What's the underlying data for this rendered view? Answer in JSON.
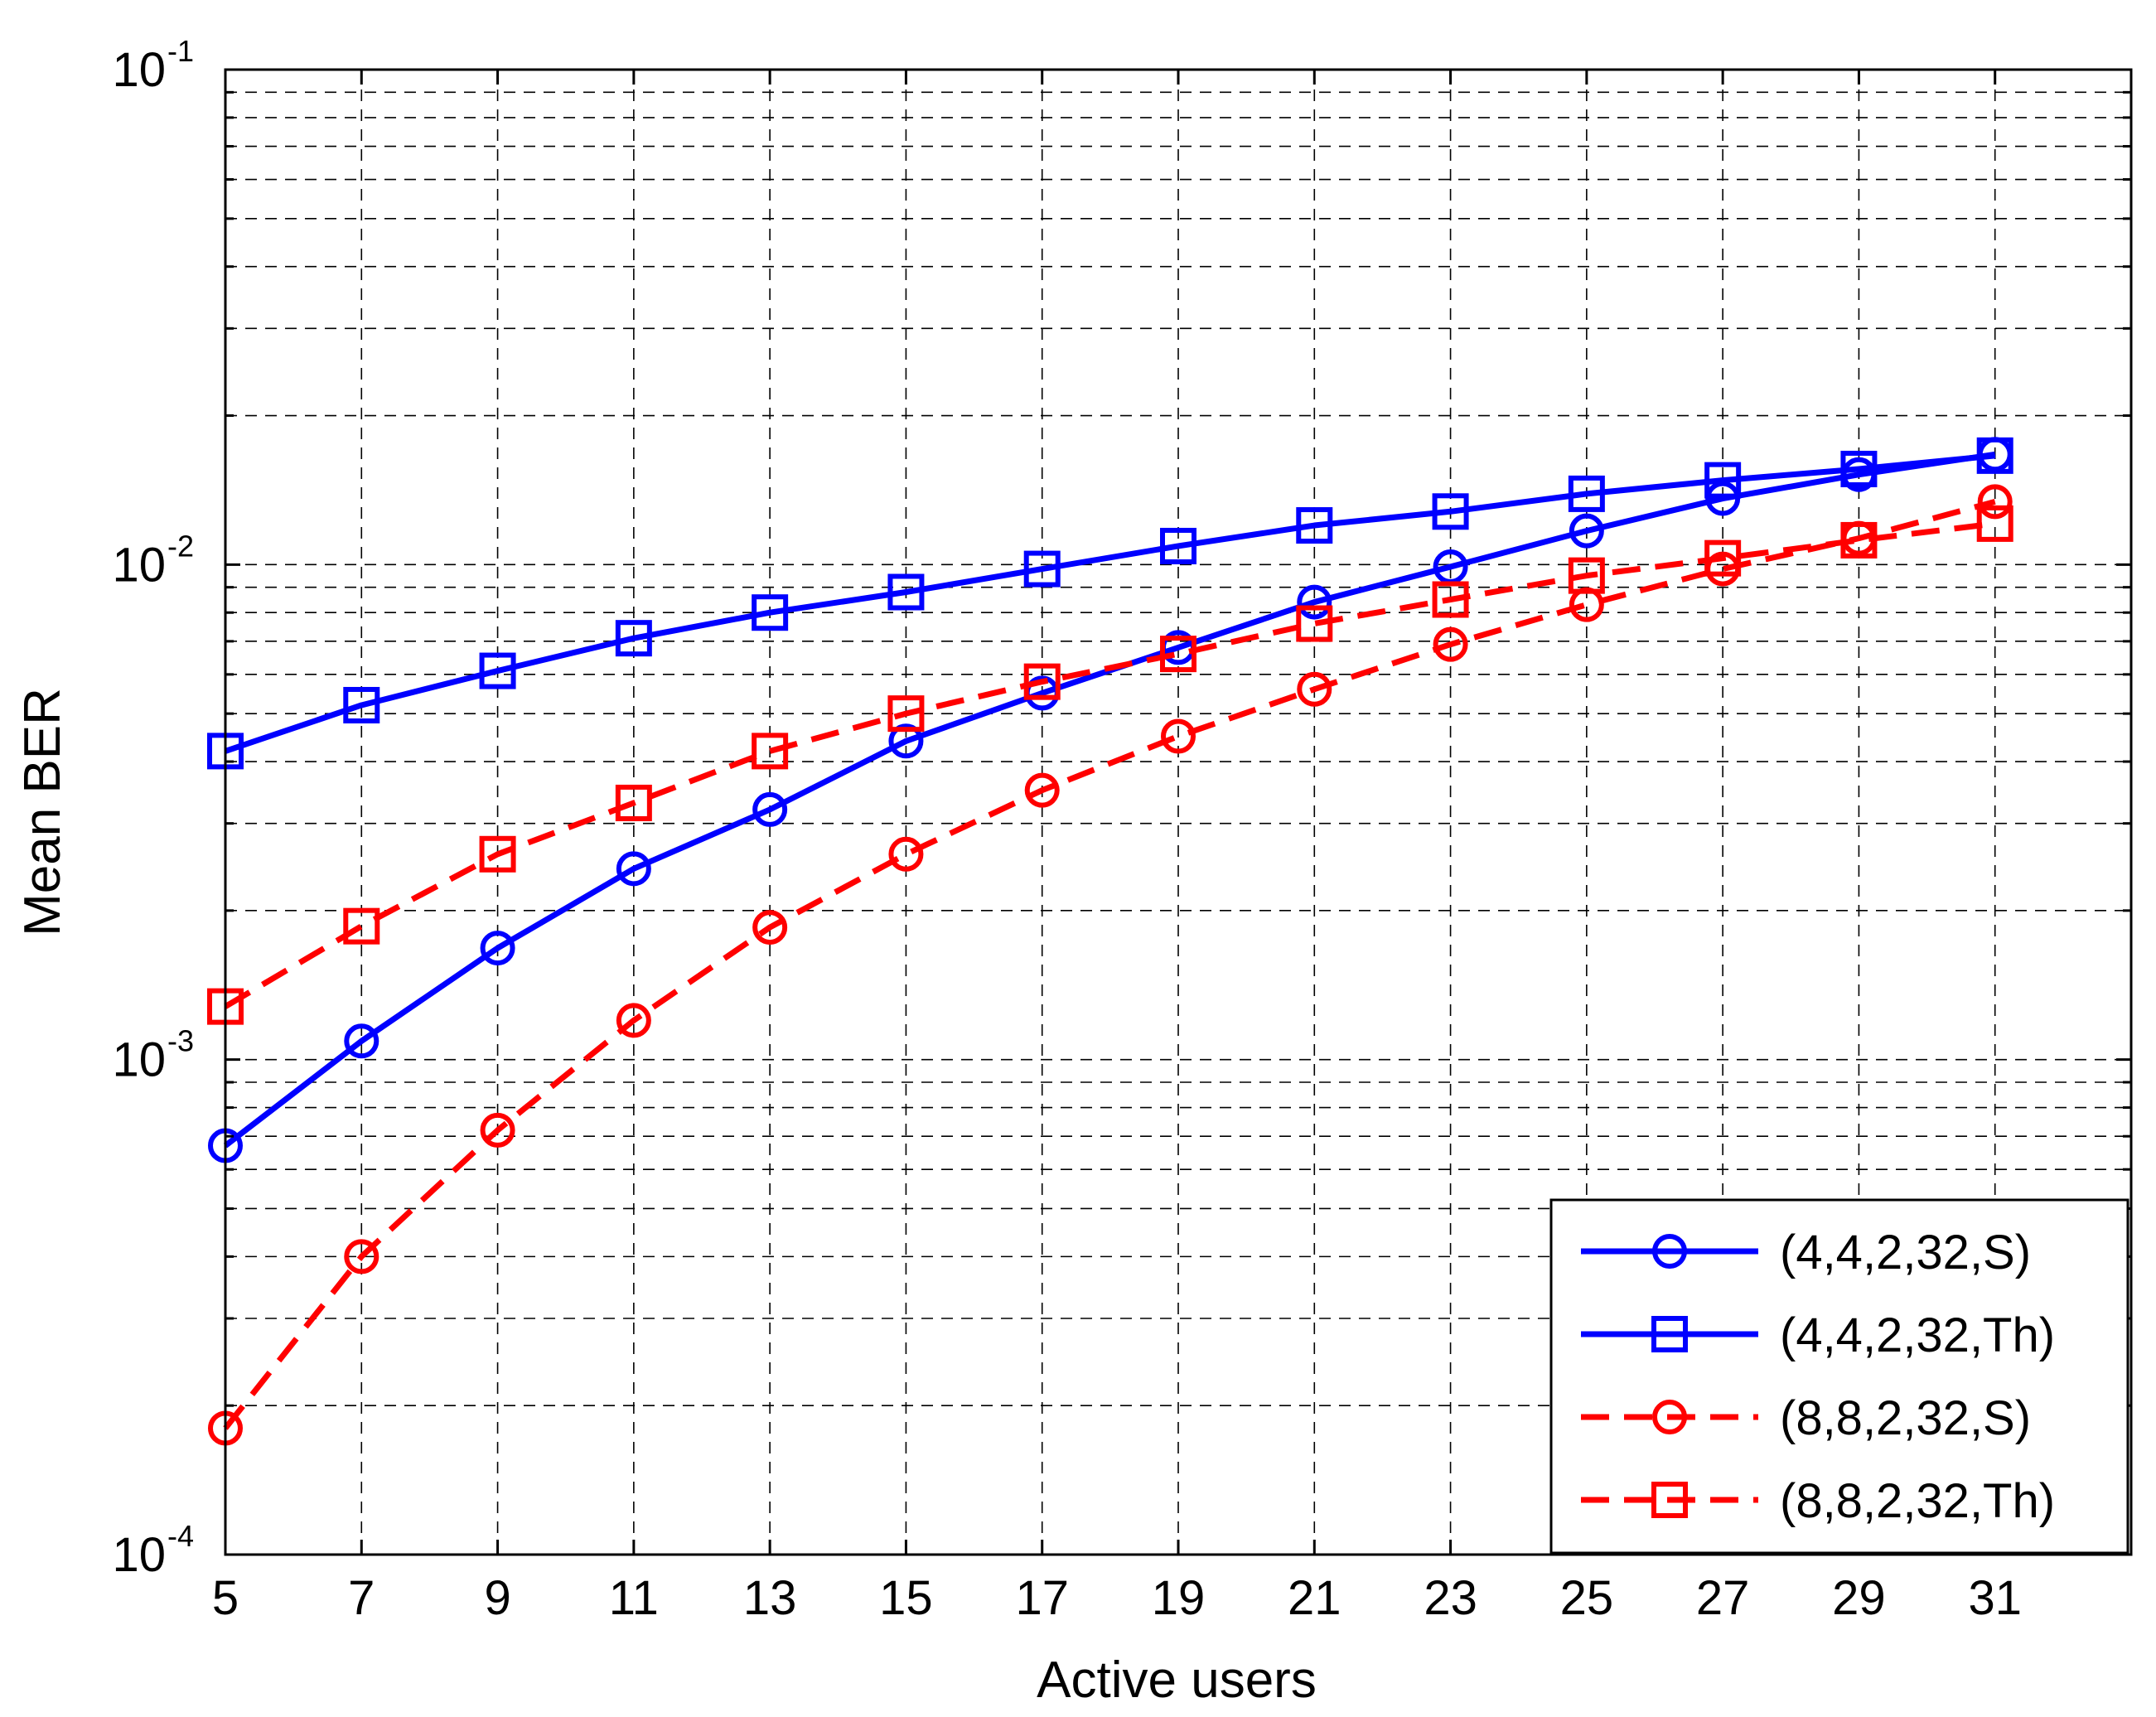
{
  "chart_data": {
    "type": "line",
    "title": "",
    "xlabel": "Active users",
    "ylabel": "Mean BER",
    "x_ticks": [
      "5",
      "7",
      "9",
      "11",
      "13",
      "15",
      "17",
      "19",
      "21",
      "23",
      "25",
      "27",
      "29",
      "31"
    ],
    "xlim": [
      5,
      33
    ],
    "y_scale": "log",
    "ylim": [
      0.0001,
      0.1
    ],
    "y_ticks": [
      {
        "base": "10",
        "exp": "-4",
        "value": 0.0001
      },
      {
        "base": "10",
        "exp": "-3",
        "value": 0.001
      },
      {
        "base": "10",
        "exp": "-2",
        "value": 0.01
      },
      {
        "base": "10",
        "exp": "-1",
        "value": 0.1
      }
    ],
    "grid": true,
    "legend_position": "bottom-right",
    "x": [
      5,
      7,
      9,
      11,
      13,
      15,
      17,
      19,
      21,
      23,
      25,
      27,
      29,
      31
    ],
    "series": [
      {
        "name": "(4,4,2,32,S)",
        "color": "#0000ff",
        "line_style": "solid",
        "marker": "circle",
        "values": [
          0.00067,
          0.00109,
          0.00168,
          0.00243,
          0.0032,
          0.0044,
          0.0055,
          0.0068,
          0.0084,
          0.0099,
          0.0117,
          0.0136,
          0.0152,
          0.0167
        ]
      },
      {
        "name": "(4,4,2,32,Th)",
        "color": "#0000ff",
        "line_style": "solid",
        "marker": "square",
        "values": [
          0.0042,
          0.0052,
          0.0061,
          0.0071,
          0.008,
          0.0088,
          0.0098,
          0.0109,
          0.012,
          0.0128,
          0.0139,
          0.0148,
          0.0156,
          0.0166
        ]
      },
      {
        "name": "(8,8,2,32,S)",
        "color": "#ff0000",
        "line_style": "dashed",
        "marker": "circle",
        "values": [
          0.00018,
          0.0004,
          0.00072,
          0.0012,
          0.00185,
          0.0026,
          0.0035,
          0.0045,
          0.0056,
          0.0069,
          0.0083,
          0.0098,
          0.0113,
          0.0134
        ]
      },
      {
        "name": "(8,8,2,32,Th)",
        "color": "#ff0000",
        "line_style": "dashed",
        "marker": "square",
        "values": [
          0.00128,
          0.00186,
          0.0026,
          0.0033,
          0.0042,
          0.005,
          0.0058,
          0.0066,
          0.0076,
          0.0085,
          0.0095,
          0.0103,
          0.0112,
          0.0121
        ]
      }
    ]
  }
}
